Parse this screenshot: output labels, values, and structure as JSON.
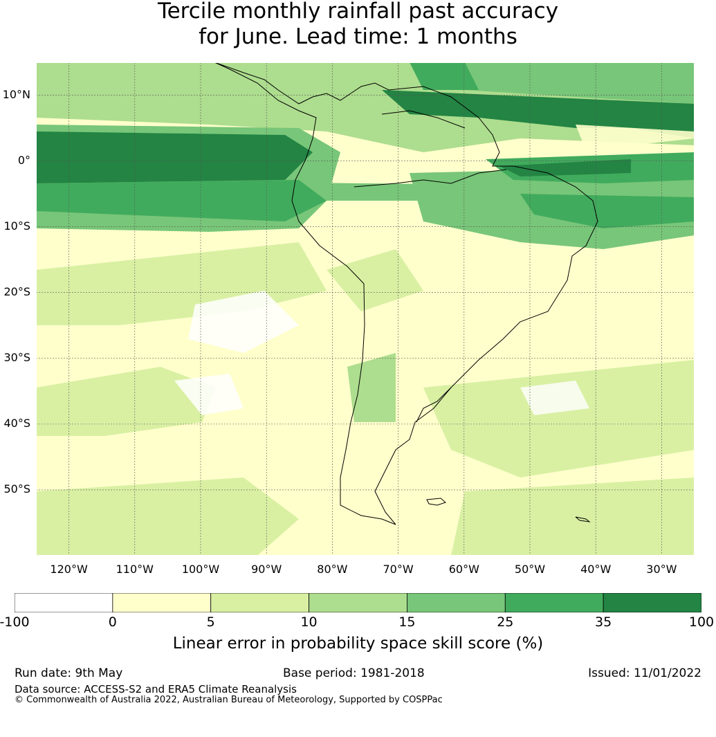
{
  "title_line1": "Tercile monthly rainfall past accuracy",
  "title_line2": "for June. Lead time: 1 months",
  "map": {
    "lat_labels": [
      "10°N",
      "0°",
      "10°S",
      "20°S",
      "30°S",
      "40°S",
      "50°S"
    ],
    "lat_values": [
      10,
      0,
      -10,
      -20,
      -30,
      -40,
      -50
    ],
    "lon_labels": [
      "120°W",
      "110°W",
      "100°W",
      "90°W",
      "80°W",
      "70°W",
      "60°W",
      "50°W",
      "40°W",
      "30°W"
    ],
    "lon_values": [
      -120,
      -110,
      -100,
      -90,
      -80,
      -70,
      -60,
      -50,
      -40,
      -30
    ],
    "extent": {
      "lon_min": -125,
      "lon_max": -25,
      "lat_min": -60,
      "lat_max": 15
    },
    "grid": true
  },
  "legend": {
    "ticks": [
      "-100",
      "0",
      "5",
      "10",
      "15",
      "25",
      "35",
      "100"
    ],
    "colors": [
      "#ffffff",
      "#ffffcc",
      "#d9f0a3",
      "#addd8e",
      "#78c679",
      "#41ab5d",
      "#238443"
    ],
    "label": "Linear error in probability space skill score (%)"
  },
  "footer": {
    "run_date": "Run date: 9th May",
    "base_period": "Base period: 1981-2018",
    "issued": "Issued: 11/01/2022",
    "data_source": "Data source: ACCESS-S2 and ERA5 Climate Reanalysis",
    "copyright": "© Commonwealth of Australia 2022, Australian Bureau of Meteorology, Supported by COSPPac"
  }
}
